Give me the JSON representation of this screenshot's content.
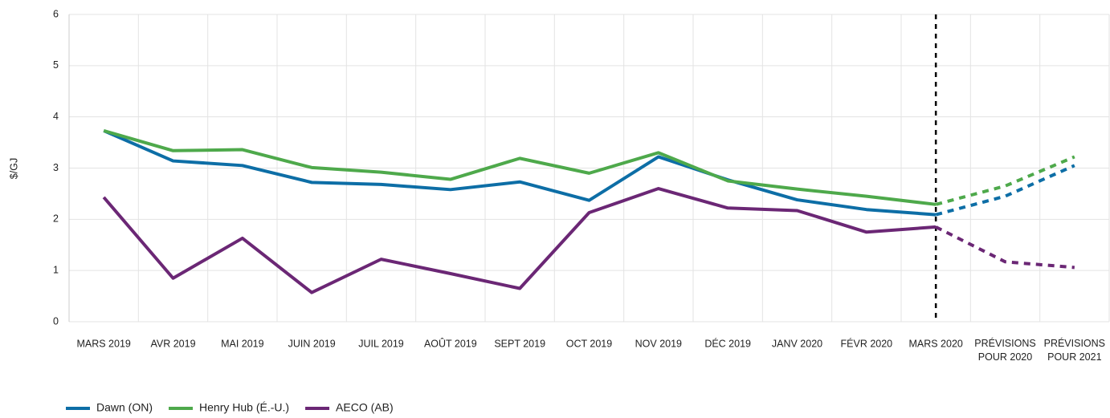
{
  "chart_data": {
    "type": "line",
    "y_label": "$/GJ",
    "categories": [
      "MARS 2019",
      "AVR 2019",
      "MAI 2019",
      "JUIN 2019",
      "JUIL 2019",
      "AOÛT 2019",
      "SEPT 2019",
      "OCT 2019",
      "NOV 2019",
      "DÉC 2019",
      "JANV 2020",
      "FÉVR 2020",
      "MARS 2020",
      "PRÉVISIONS\nPOUR 2020",
      "PRÉVISIONS\nPOUR 2021"
    ],
    "dashed_from": "MARS 2020",
    "series": [
      {
        "name": "Dawn (ON)",
        "color": "#0d6ea6",
        "values": [
          3.73,
          3.14,
          3.05,
          2.72,
          2.68,
          2.58,
          2.73,
          2.37,
          3.22,
          2.77,
          2.38,
          2.19,
          2.09,
          2.45,
          3.05
        ]
      },
      {
        "name": "Henry Hub (É.-U.)",
        "color": "#4ea94b",
        "values": [
          3.73,
          3.34,
          3.36,
          3.01,
          2.92,
          2.78,
          3.19,
          2.9,
          3.3,
          2.75,
          2.59,
          2.45,
          2.29,
          2.65,
          3.22
        ]
      },
      {
        "name": "AECO (AB)",
        "color": "#6b2775",
        "values": [
          2.43,
          0.85,
          1.63,
          0.57,
          1.22,
          0.94,
          0.65,
          2.13,
          2.6,
          2.22,
          2.17,
          1.75,
          1.85,
          1.17,
          1.06
        ]
      }
    ],
    "ylim": [
      0,
      6
    ],
    "yticks": [
      0,
      1,
      2,
      3,
      4,
      5,
      6
    ],
    "grid": true,
    "legend": "bottom-left"
  }
}
